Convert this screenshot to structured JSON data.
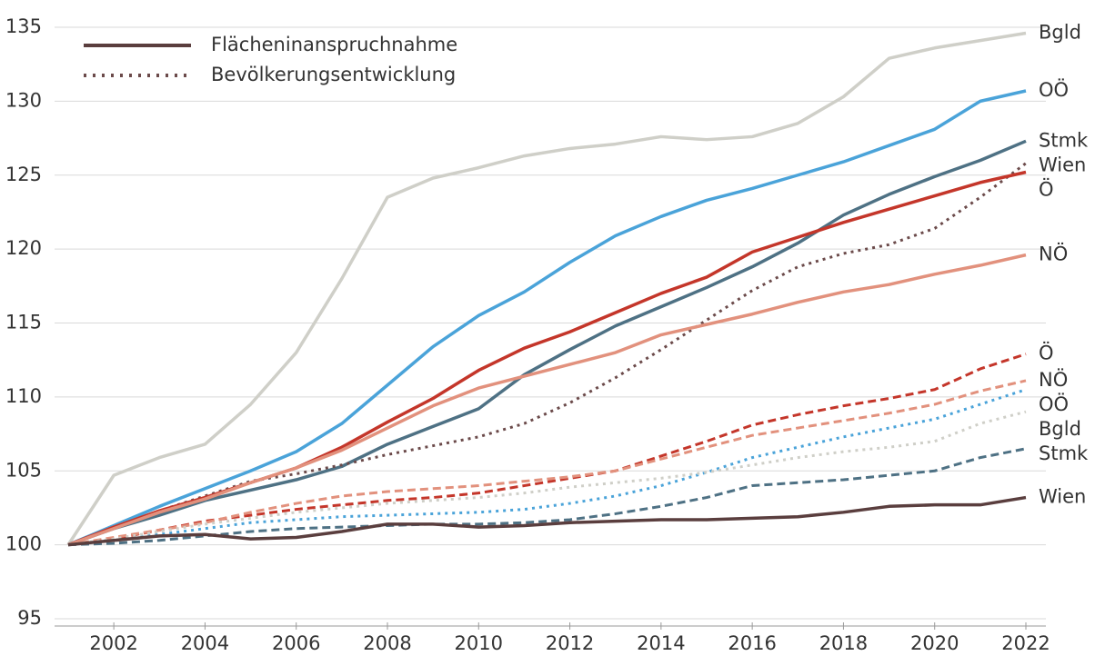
{
  "chart_data": {
    "type": "line",
    "legend": [
      "Flächeninanspruchnahme",
      "Bevölkerungsentwicklung"
    ],
    "x": [
      2001,
      2002,
      2003,
      2004,
      2005,
      2006,
      2007,
      2008,
      2009,
      2010,
      2011,
      2012,
      2013,
      2014,
      2015,
      2016,
      2017,
      2018,
      2019,
      2020,
      2021,
      2022
    ],
    "xlim": [
      2001,
      2022
    ],
    "xticks": [
      2002,
      2004,
      2006,
      2008,
      2010,
      2012,
      2014,
      2016,
      2018,
      2020,
      2022
    ],
    "ylim": [
      95,
      135
    ],
    "yticks": [
      95,
      100,
      105,
      110,
      115,
      120,
      125,
      130,
      135
    ],
    "grid": true,
    "series": [
      {
        "name": "Bgld",
        "color": "#cfcfc8",
        "dash": "solid",
        "values": [
          100,
          104.7,
          105.9,
          106.8,
          109.5,
          113,
          118,
          123.5,
          124.8,
          125.5,
          126.3,
          126.8,
          127.1,
          127.6,
          127.4,
          127.6,
          128.5,
          130.3,
          132.9,
          133.6,
          134.1,
          134.6
        ]
      },
      {
        "name": "OÖ",
        "color": "#4aa3d9",
        "dash": "solid",
        "values": [
          100,
          101.3,
          102.6,
          103.8,
          105,
          106.3,
          108.2,
          110.8,
          113.4,
          115.5,
          117.1,
          119.1,
          120.9,
          122.2,
          123.3,
          124.1,
          125,
          125.9,
          127,
          128.1,
          130,
          130.7
        ]
      },
      {
        "name": "Stmk",
        "color": "#4e7184",
        "dash": "solid",
        "values": [
          100,
          101.1,
          102,
          103,
          103.7,
          104.4,
          105.3,
          106.8,
          108,
          109.2,
          111.5,
          113.2,
          114.8,
          116.1,
          117.4,
          118.8,
          120.4,
          122.3,
          123.7,
          124.9,
          126,
          127.3
        ]
      },
      {
        "name": "Wien",
        "color": "#6b4a4a",
        "dash": "dotted",
        "values": [
          100,
          101.2,
          102.3,
          103.3,
          104.3,
          104.8,
          105.4,
          106.1,
          106.7,
          107.3,
          108.2,
          109.6,
          111.3,
          113.2,
          115.2,
          117.2,
          118.8,
          119.7,
          120.3,
          121.4,
          123.5,
          125.8
        ]
      },
      {
        "name": "Ö",
        "color": "#c4362a",
        "dash": "solid",
        "values": [
          100,
          101.2,
          102.3,
          103.2,
          104.2,
          105.2,
          106.6,
          108.3,
          109.9,
          111.8,
          113.3,
          114.4,
          115.7,
          117,
          118.1,
          119.8,
          120.8,
          121.8,
          122.7,
          123.6,
          124.5,
          125.2
        ]
      },
      {
        "name": "NÖ",
        "color": "#e2917d",
        "dash": "solid",
        "values": [
          100,
          101.1,
          102.2,
          103.1,
          104.2,
          105.2,
          106.4,
          107.9,
          109.4,
          110.6,
          111.4,
          112.2,
          113,
          114.2,
          114.9,
          115.6,
          116.4,
          117.1,
          117.6,
          118.3,
          118.9,
          119.6
        ]
      },
      {
        "name": "Ö",
        "color": "#c4362a",
        "dash": "dashed",
        "values": [
          100,
          100.4,
          101,
          101.6,
          102,
          102.4,
          102.7,
          103,
          103.2,
          103.5,
          104,
          104.5,
          105,
          106,
          107,
          108.1,
          108.8,
          109.4,
          109.9,
          110.5,
          111.9,
          112.9
        ]
      },
      {
        "name": "NÖ",
        "color": "#e2917d",
        "dash": "dashed",
        "values": [
          100,
          100.5,
          101,
          101.5,
          102.2,
          102.8,
          103.3,
          103.6,
          103.8,
          104,
          104.3,
          104.6,
          105,
          105.8,
          106.6,
          107.4,
          107.9,
          108.4,
          108.9,
          109.5,
          110.4,
          111.1
        ]
      },
      {
        "name": "OÖ",
        "color": "#4aa3d9",
        "dash": "dotted",
        "values": [
          100,
          100.3,
          100.7,
          101.1,
          101.5,
          101.7,
          101.9,
          102,
          102.1,
          102.2,
          102.4,
          102.8,
          103.3,
          104,
          104.9,
          105.9,
          106.6,
          107.3,
          107.9,
          108.5,
          109.5,
          110.5
        ]
      },
      {
        "name": "Bgld",
        "color": "#cfcfc8",
        "dash": "dotted",
        "values": [
          100,
          100.4,
          100.9,
          101.4,
          101.8,
          102.2,
          102.5,
          102.8,
          103,
          103.2,
          103.5,
          103.9,
          104.2,
          104.5,
          104.9,
          105.4,
          105.9,
          106.3,
          106.6,
          107,
          108.2,
          109
        ]
      },
      {
        "name": "Stmk",
        "color": "#4e7184",
        "dash": "dashed",
        "values": [
          100,
          100.1,
          100.3,
          100.6,
          100.9,
          101.1,
          101.2,
          101.3,
          101.4,
          101.4,
          101.5,
          101.7,
          102.1,
          102.6,
          103.2,
          104,
          104.2,
          104.4,
          104.7,
          105,
          105.9,
          106.5
        ]
      },
      {
        "name": "Wien",
        "color": "#5a3e3e",
        "dash": "solid",
        "values": [
          100,
          100.3,
          100.6,
          100.7,
          100.4,
          100.5,
          100.9,
          101.4,
          101.4,
          101.2,
          101.3,
          101.5,
          101.6,
          101.7,
          101.7,
          101.8,
          101.9,
          102.2,
          102.6,
          102.7,
          102.7,
          103.2
        ]
      }
    ]
  }
}
